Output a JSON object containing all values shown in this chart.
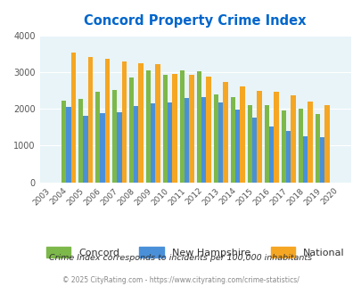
{
  "title": "Concord Property Crime Index",
  "years": [
    2003,
    2004,
    2005,
    2006,
    2007,
    2008,
    2009,
    2010,
    2011,
    2012,
    2013,
    2014,
    2015,
    2016,
    2017,
    2018,
    2019,
    2020
  ],
  "concord": [
    0,
    2220,
    2270,
    2460,
    2510,
    2840,
    3050,
    2930,
    3050,
    3020,
    2400,
    2310,
    2090,
    2090,
    1960,
    2000,
    1860,
    0
  ],
  "new_hampshire": [
    0,
    2060,
    1820,
    1870,
    1910,
    2070,
    2140,
    2170,
    2290,
    2320,
    2180,
    1980,
    1750,
    1520,
    1390,
    1240,
    1220,
    0
  ],
  "national": [
    0,
    3540,
    3420,
    3360,
    3290,
    3250,
    3210,
    2960,
    2930,
    2880,
    2730,
    2600,
    2490,
    2460,
    2360,
    2200,
    2110,
    0
  ],
  "concord_color": "#7db84a",
  "nh_color": "#4a90d9",
  "national_color": "#f5a623",
  "plot_bg": "#e8f4f8",
  "ylim": [
    0,
    4000
  ],
  "yticks": [
    0,
    1000,
    2000,
    3000,
    4000
  ],
  "footnote1": "Crime Index corresponds to incidents per 100,000 inhabitants",
  "footnote2": "© 2025 CityRating.com - https://www.cityrating.com/crime-statistics/"
}
